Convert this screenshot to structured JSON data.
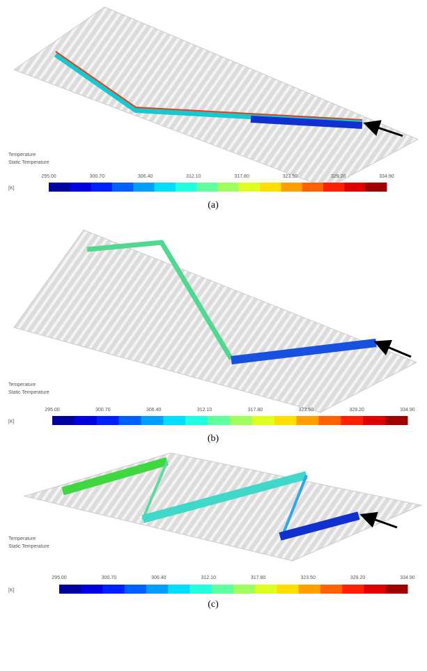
{
  "panels": [
    {
      "legend": {
        "title": "Temperature",
        "subtitle": "Static Temperature",
        "unit": "[K]",
        "ticks": [
          "295.00",
          "300.70",
          "306.40",
          "312.10",
          "317.80",
          "323.50",
          "329.20",
          "334.90"
        ]
      },
      "caption": "(a)"
    },
    {
      "legend": {
        "title": "Temperature",
        "subtitle": "Static Temperature",
        "unit": "[K]",
        "ticks": [
          "295.00",
          "300.70",
          "306.40",
          "312.10",
          "317.80",
          "323.50",
          "329.20",
          "334.90"
        ]
      },
      "caption": "(b)"
    },
    {
      "legend": {
        "title": "Temperature",
        "subtitle": "Static Temperature",
        "unit": "[K]",
        "ticks": [
          "295.00",
          "300.70",
          "306.40",
          "312.10",
          "317.80",
          "323.50",
          "329.20",
          "334.90"
        ]
      },
      "caption": "(c)"
    }
  ]
}
